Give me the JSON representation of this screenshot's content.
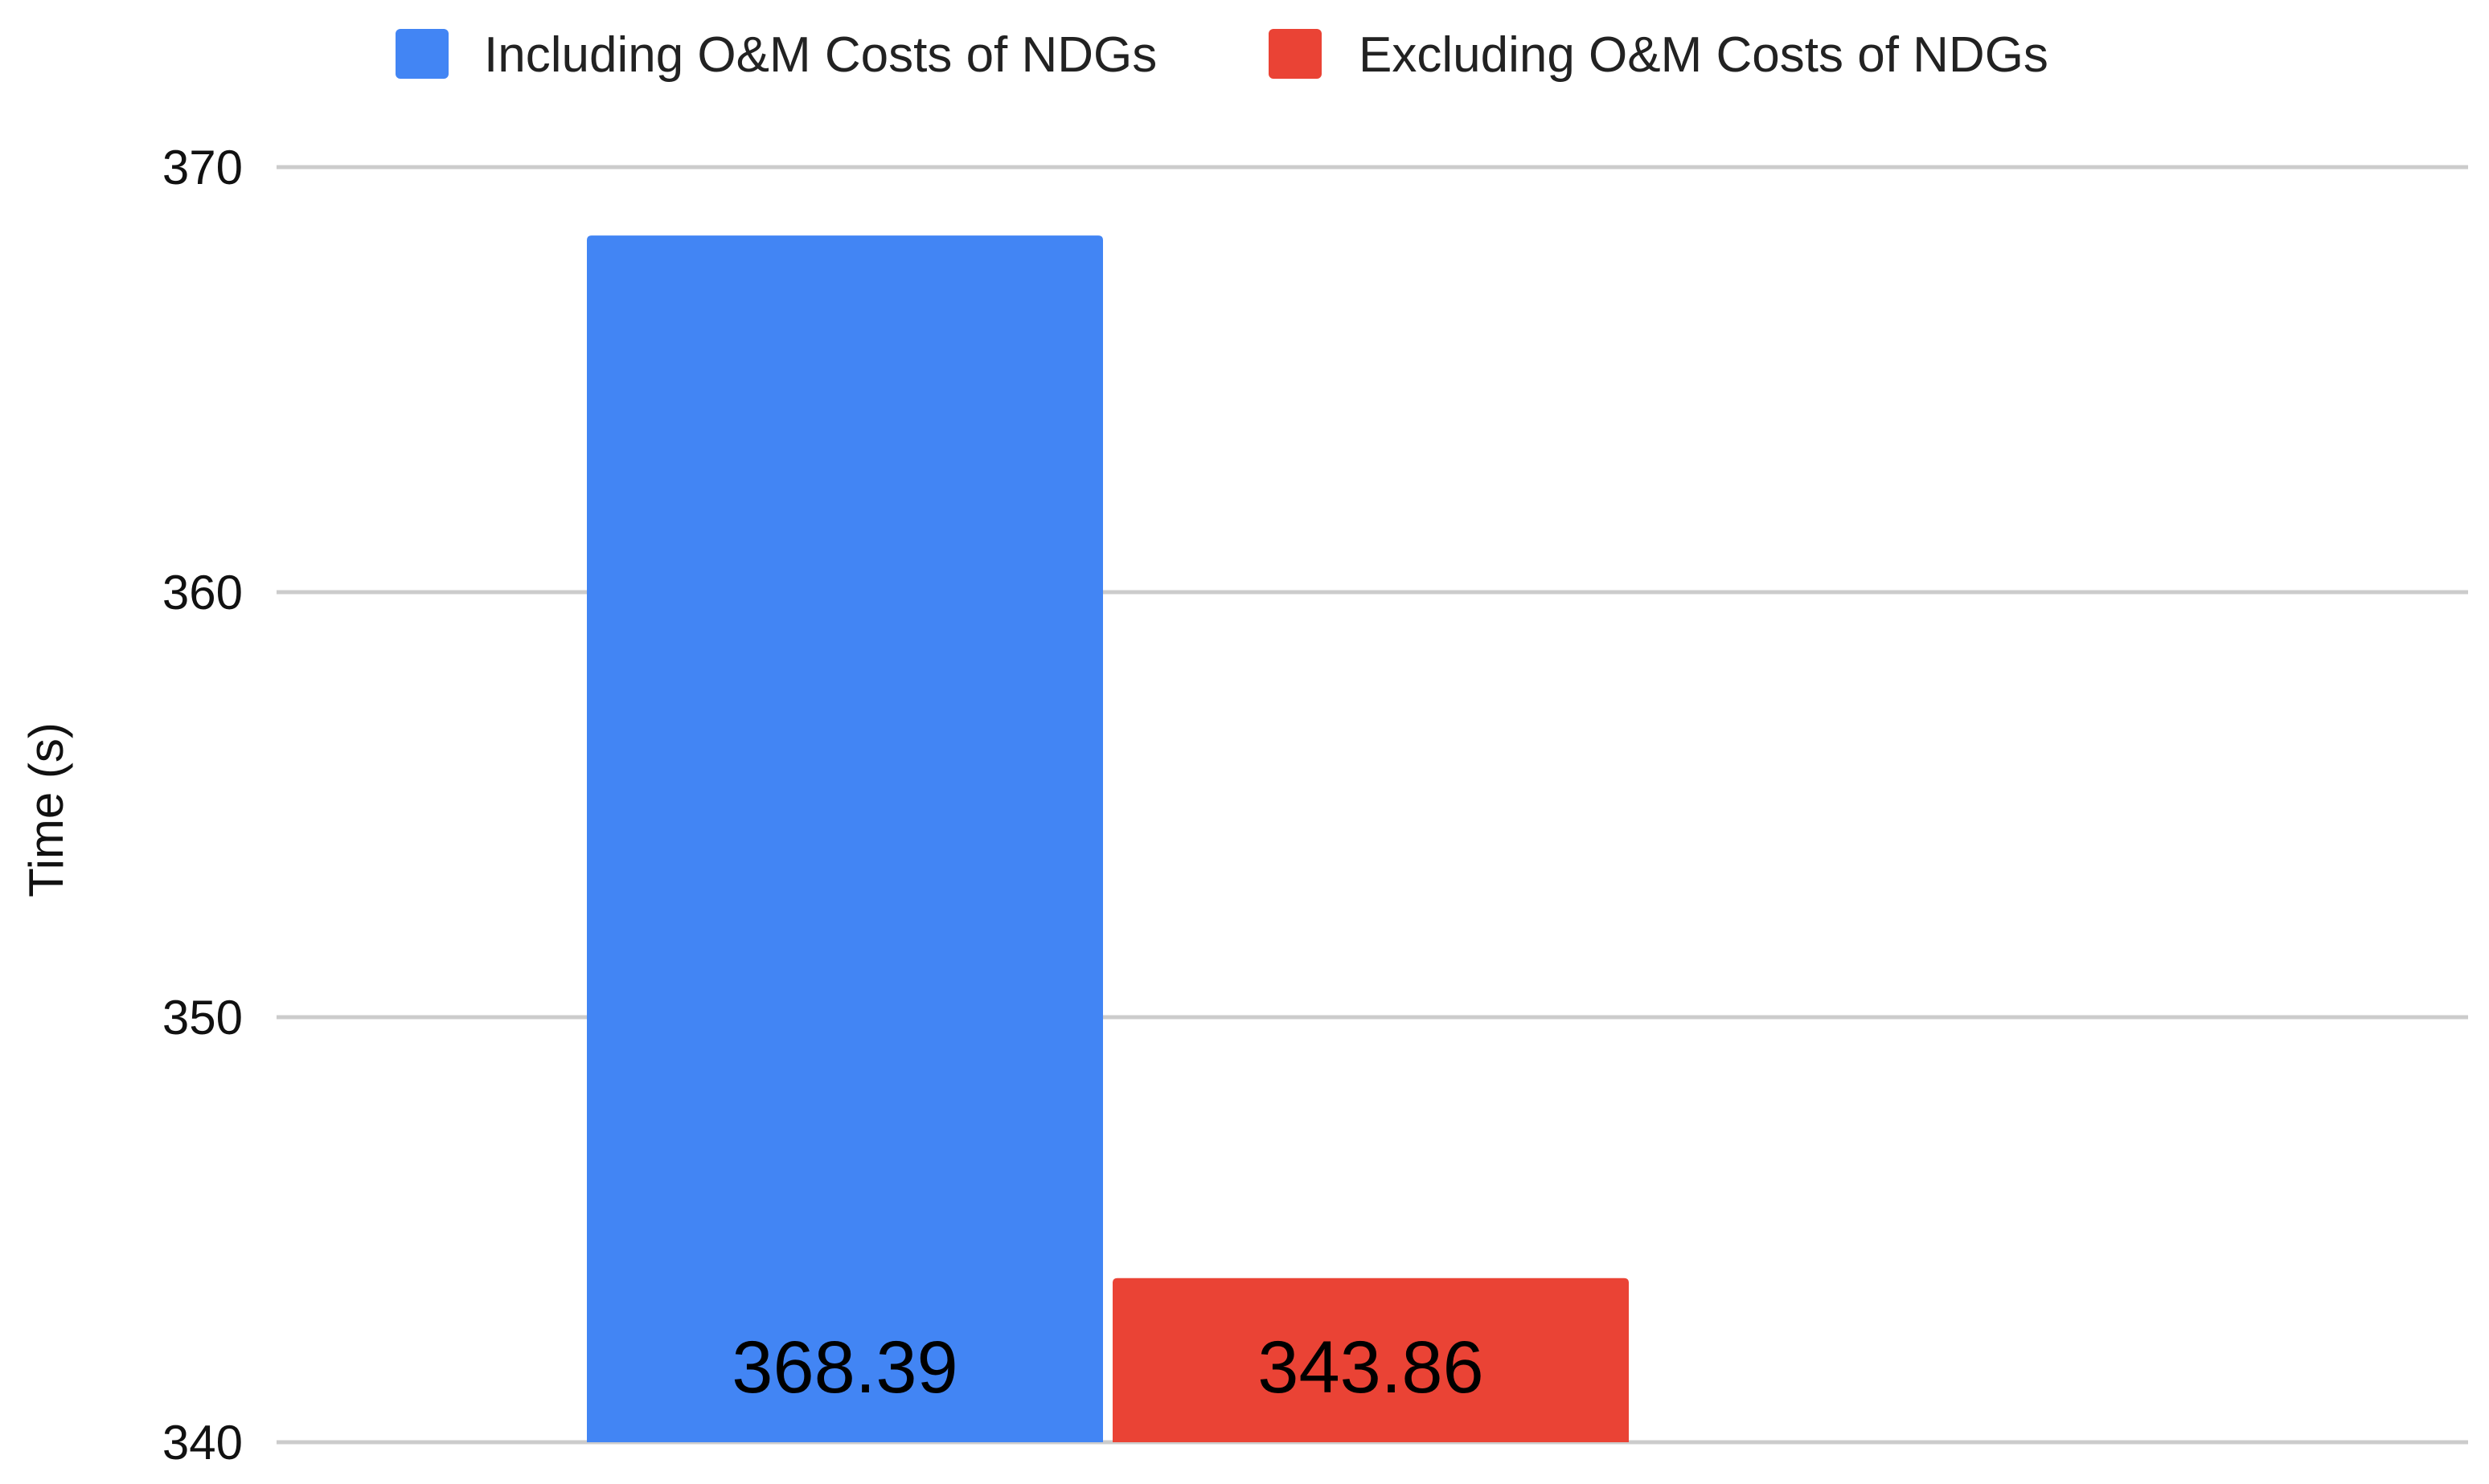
{
  "chart_data": {
    "type": "bar",
    "title": "",
    "xlabel": "",
    "ylabel": "Time (s)",
    "ylim": [
      340,
      370
    ],
    "yticks": [
      340,
      350,
      360,
      370
    ],
    "grid": true,
    "legend_position": "top-center",
    "categories": [
      ""
    ],
    "series": [
      {
        "name": "Including O&M Costs of NDGs",
        "color": "#4285F4",
        "values": [
          368.39
        ],
        "labels": [
          "368.39"
        ]
      },
      {
        "name": "Excluding O&M Costs of NDGs",
        "color": "#EA4335",
        "values": [
          343.86
        ],
        "labels": [
          "343.86"
        ]
      }
    ]
  }
}
